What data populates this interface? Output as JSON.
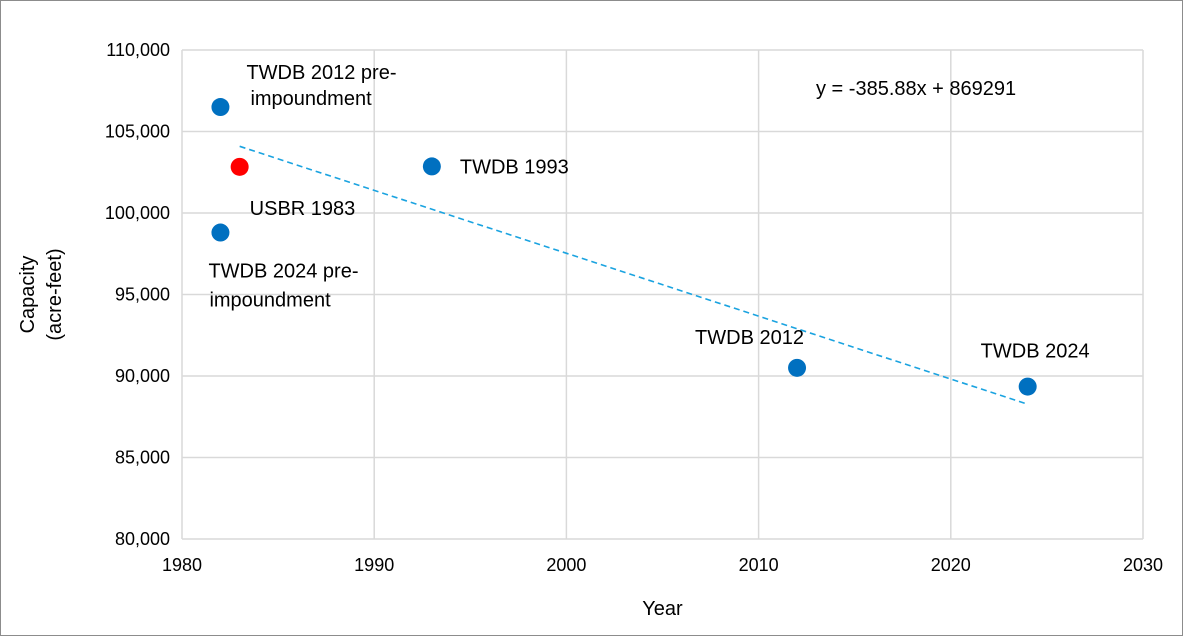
{
  "chart_data": {
    "type": "scatter",
    "xlabel": "Year",
    "ylabel_lines": [
      "Capacity",
      "(acre-feet)"
    ],
    "xlim": [
      1980,
      2030
    ],
    "ylim": [
      80000,
      110000
    ],
    "x_ticks": [
      1980,
      1990,
      2000,
      2010,
      2020,
      2030
    ],
    "x_tick_labels": [
      "1980",
      "1990",
      "2000",
      "2010",
      "2020",
      "2030"
    ],
    "y_ticks": [
      80000,
      85000,
      90000,
      95000,
      100000,
      105000,
      110000
    ],
    "y_tick_labels": [
      "80,000",
      "85,000",
      "90,000",
      "95,000",
      "100,000",
      "105,000",
      "110,000"
    ],
    "grid": true,
    "points": [
      {
        "x": 1982,
        "y": 106500,
        "color": "#0070c0",
        "label_lines": [
          "TWDB 2012 pre-",
          "impoundment"
        ]
      },
      {
        "x": 1983,
        "y": 102830,
        "color": "#ff0000",
        "label_lines": [
          "USBR 1983"
        ]
      },
      {
        "x": 1982,
        "y": 98800,
        "color": "#0070c0",
        "label_lines": [
          "TWDB 2024 pre-",
          "impoundment"
        ]
      },
      {
        "x": 1993,
        "y": 102860,
        "color": "#0070c0",
        "label_lines": [
          "TWDB 1993"
        ]
      },
      {
        "x": 2012,
        "y": 90500,
        "color": "#0070c0",
        "label_lines": [
          "TWDB 2012"
        ]
      },
      {
        "x": 2024,
        "y": 89350,
        "color": "#0070c0",
        "label_lines": [
          "TWDB 2024"
        ]
      }
    ],
    "trendline": {
      "slope": -385.88,
      "intercept": 869291,
      "x_range": [
        1983,
        2024
      ],
      "color": "#1aa3e0",
      "style": "dashed",
      "equation_text": "y = -385.88x + 869291"
    }
  }
}
